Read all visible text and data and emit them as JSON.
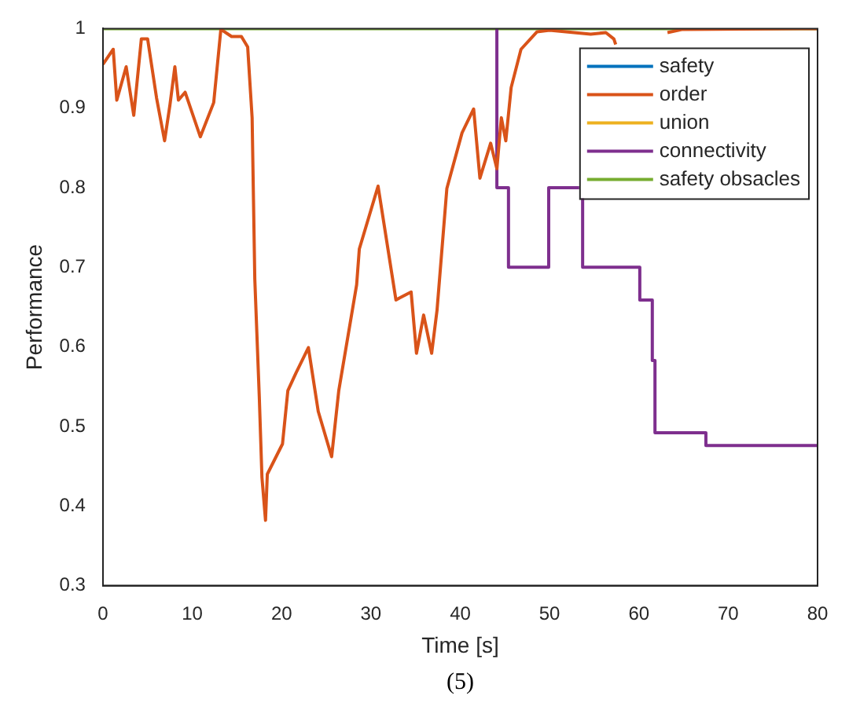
{
  "chart_data": {
    "type": "line",
    "xlabel": "Time [s]",
    "ylabel": "Performance",
    "annotations": [
      "(5)"
    ],
    "xlim": [
      0,
      80
    ],
    "xticks": [
      0,
      10,
      20,
      30,
      40,
      50,
      60,
      70,
      80
    ],
    "ylim": [
      0.3,
      1
    ],
    "yticks": [
      0.3,
      0.4,
      0.5,
      0.6,
      0.7,
      0.8,
      0.9,
      1
    ],
    "grid": false,
    "legend": "top right",
    "marker": "none",
    "line_style": "solid",
    "series": [
      {
        "name": "safety",
        "color": "#0072bd"
      },
      {
        "name": "order",
        "color": "#d95319",
        "x": [
          0,
          1.15,
          1.55,
          2.6,
          3.45,
          4.3,
          5.0,
          6.0,
          6.9,
          7.5,
          8.05,
          8.45,
          9.2,
          10.9,
          12.4,
          13.2,
          14.4,
          15.5,
          16.2,
          16.7,
          17.0,
          17.5,
          17.8,
          18.2,
          18.4,
          20.1,
          20.7,
          21.6,
          23.0,
          24.1,
          25.6,
          26.4,
          28.4,
          28.7,
          30.8,
          32.8,
          34.5,
          35.1,
          35.9,
          36.8,
          37.4,
          38.5,
          40.2,
          41.5,
          42.2,
          43.4,
          44.1,
          44.6,
          45.1,
          45.7,
          46.8,
          48.6,
          50.0,
          54.6,
          56.3,
          57.2,
          57.4,
          58,
          62.5,
          63.2,
          64.9,
          80
        ],
        "values": [
          0.955,
          0.974,
          0.91,
          0.952,
          0.891,
          0.987,
          0.987,
          0.913,
          0.859,
          0.904,
          0.952,
          0.91,
          0.92,
          0.864,
          0.907,
          0.999,
          0.99,
          0.99,
          0.977,
          0.888,
          0.685,
          0.538,
          0.436,
          0.382,
          0.44,
          0.478,
          0.545,
          0.567,
          0.599,
          0.519,
          0.462,
          0.545,
          0.678,
          0.723,
          0.802,
          0.659,
          0.669,
          0.592,
          0.64,
          0.592,
          0.646,
          0.799,
          0.869,
          0.899,
          0.812,
          0.856,
          0.824,
          0.888,
          0.859,
          0.926,
          0.974,
          0.996,
          0.998,
          0.993,
          0.995,
          0.987,
          0.98,
          null,
          null,
          0.995,
          0.999,
          1
        ]
      },
      {
        "name": "union",
        "color": "#edb120"
      },
      {
        "name": "connectivity",
        "color": "#7e2f8e",
        "type": "step",
        "x": [
          44.1,
          44.1,
          45.4,
          49.9,
          53.7,
          60.1,
          61.5,
          61.8,
          67.5,
          80
        ],
        "values": [
          1,
          0.8,
          0.7,
          0.8,
          0.7,
          0.659,
          0.583,
          0.492,
          0.476,
          0.476
        ]
      },
      {
        "name": "safety obsacles",
        "color": "#77ac30",
        "x": [
          0,
          80
        ],
        "values": [
          1,
          1
        ]
      }
    ]
  }
}
